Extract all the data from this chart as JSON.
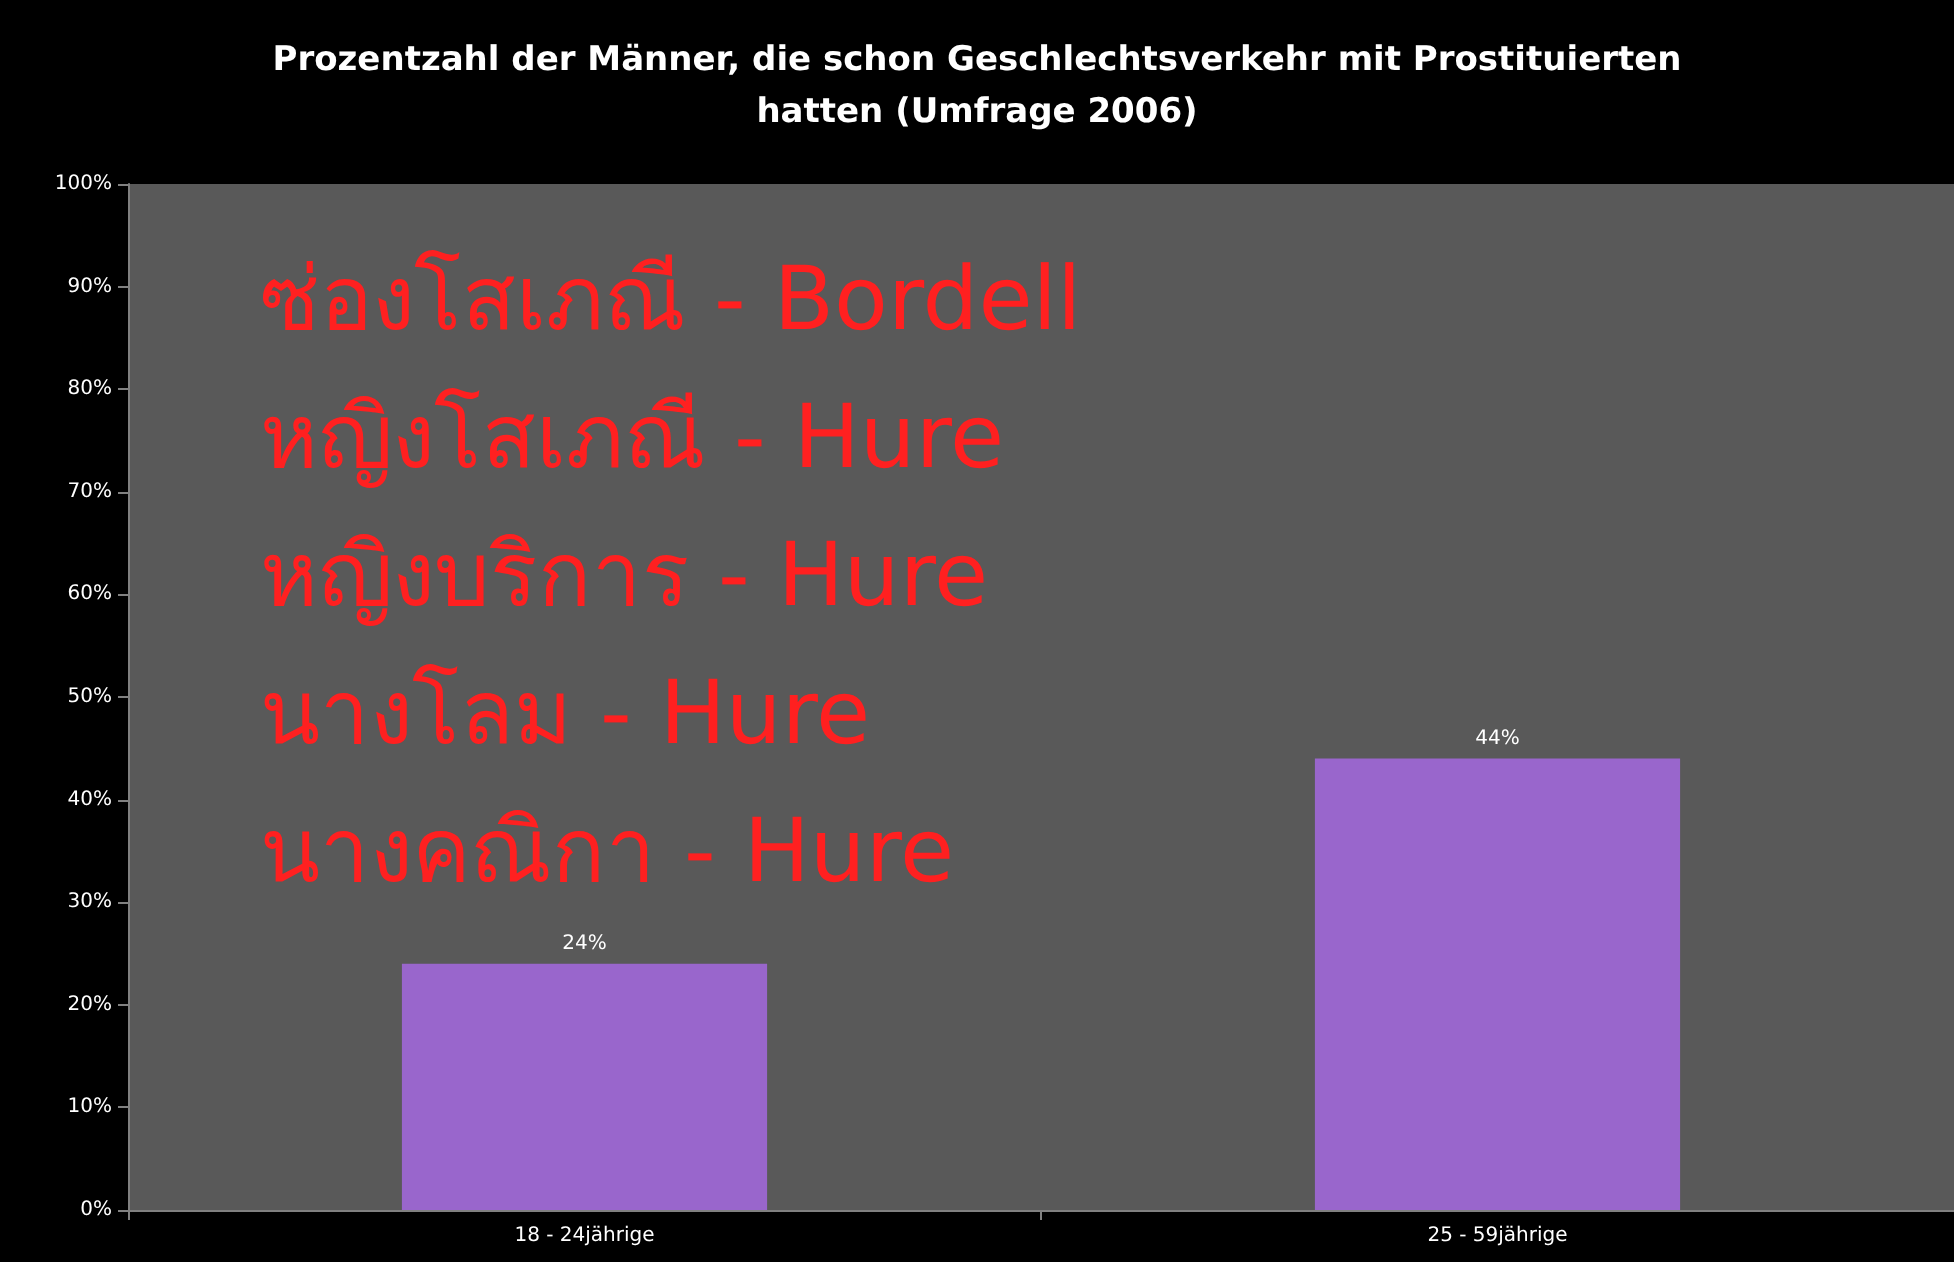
{
  "chart_data": {
    "type": "bar",
    "title": "Prozentzahl der Männer, die schon Geschlechtsverkehr mit Prostituierten\nhatten (Umfrage 2006)",
    "categories": [
      "18 - 24jährige",
      "25 - 59jährige"
    ],
    "series": [
      {
        "color": "#9966cc",
        "values": [
          24,
          44
        ],
        "value_labels": [
          "24%",
          "44%"
        ]
      }
    ],
    "ylim": [
      0,
      100
    ],
    "yticks": [
      {
        "value": 0,
        "label": "0%"
      },
      {
        "value": 10,
        "label": "10%"
      },
      {
        "value": 20,
        "label": "20%"
      },
      {
        "value": 30,
        "label": "30%"
      },
      {
        "value": 40,
        "label": "40%"
      },
      {
        "value": 50,
        "label": "50%"
      },
      {
        "value": 60,
        "label": "60%"
      },
      {
        "value": 70,
        "label": "70%"
      },
      {
        "value": 80,
        "label": "80%"
      },
      {
        "value": 90,
        "label": "90%"
      },
      {
        "value": 100,
        "label": "100%"
      }
    ],
    "grid": false,
    "annotations": [
      "ซ่องโสเภณี - Bordell",
      "หญิงโสเภณี - Hure",
      "หญิงบริการ - Hure",
      "นางโลม - Hure",
      "นางคณิกา - Hure"
    ]
  }
}
